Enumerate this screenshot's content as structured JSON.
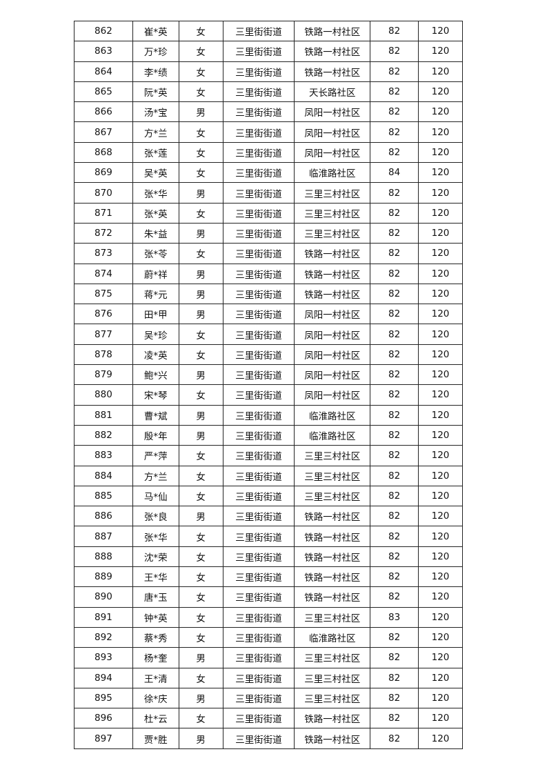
{
  "table": {
    "rows": [
      [
        "862",
        "崔*英",
        "女",
        "三里街街道",
        "铁路一村社区",
        "82",
        "120"
      ],
      [
        "863",
        "万*珍",
        "女",
        "三里街街道",
        "铁路一村社区",
        "82",
        "120"
      ],
      [
        "864",
        "李*绩",
        "女",
        "三里街街道",
        "铁路一村社区",
        "82",
        "120"
      ],
      [
        "865",
        "阮*英",
        "女",
        "三里街街道",
        "天长路社区",
        "82",
        "120"
      ],
      [
        "866",
        "汤*宝",
        "男",
        "三里街街道",
        "凤阳一村社区",
        "82",
        "120"
      ],
      [
        "867",
        "方*兰",
        "女",
        "三里街街道",
        "凤阳一村社区",
        "82",
        "120"
      ],
      [
        "868",
        "张*莲",
        "女",
        "三里街街道",
        "凤阳一村社区",
        "82",
        "120"
      ],
      [
        "869",
        "吴*英",
        "女",
        "三里街街道",
        "临淮路社区",
        "84",
        "120"
      ],
      [
        "870",
        "张*华",
        "男",
        "三里街街道",
        "三里三村社区",
        "82",
        "120"
      ],
      [
        "871",
        "张*英",
        "女",
        "三里街街道",
        "三里三村社区",
        "82",
        "120"
      ],
      [
        "872",
        "朱*益",
        "男",
        "三里街街道",
        "三里三村社区",
        "82",
        "120"
      ],
      [
        "873",
        "张*苓",
        "女",
        "三里街街道",
        "铁路一村社区",
        "82",
        "120"
      ],
      [
        "874",
        "蔚*祥",
        "男",
        "三里街街道",
        "铁路一村社区",
        "82",
        "120"
      ],
      [
        "875",
        "蒋*元",
        "男",
        "三里街街道",
        "铁路一村社区",
        "82",
        "120"
      ],
      [
        "876",
        "田*甲",
        "男",
        "三里街街道",
        "凤阳一村社区",
        "82",
        "120"
      ],
      [
        "877",
        "吴*珍",
        "女",
        "三里街街道",
        "凤阳一村社区",
        "82",
        "120"
      ],
      [
        "878",
        "凌*英",
        "女",
        "三里街街道",
        "凤阳一村社区",
        "82",
        "120"
      ],
      [
        "879",
        "鲍*兴",
        "男",
        "三里街街道",
        "凤阳一村社区",
        "82",
        "120"
      ],
      [
        "880",
        "宋*琴",
        "女",
        "三里街街道",
        "凤阳一村社区",
        "82",
        "120"
      ],
      [
        "881",
        "曹*斌",
        "男",
        "三里街街道",
        "临淮路社区",
        "82",
        "120"
      ],
      [
        "882",
        "殷*年",
        "男",
        "三里街街道",
        "临淮路社区",
        "82",
        "120"
      ],
      [
        "883",
        "严*萍",
        "女",
        "三里街街道",
        "三里三村社区",
        "82",
        "120"
      ],
      [
        "884",
        "方*兰",
        "女",
        "三里街街道",
        "三里三村社区",
        "82",
        "120"
      ],
      [
        "885",
        "马*仙",
        "女",
        "三里街街道",
        "三里三村社区",
        "82",
        "120"
      ],
      [
        "886",
        "张*良",
        "男",
        "三里街街道",
        "铁路一村社区",
        "82",
        "120"
      ],
      [
        "887",
        "张*华",
        "女",
        "三里街街道",
        "铁路一村社区",
        "82",
        "120"
      ],
      [
        "888",
        "沈*荣",
        "女",
        "三里街街道",
        "铁路一村社区",
        "82",
        "120"
      ],
      [
        "889",
        "王*华",
        "女",
        "三里街街道",
        "铁路一村社区",
        "82",
        "120"
      ],
      [
        "890",
        "唐*玉",
        "女",
        "三里街街道",
        "铁路一村社区",
        "82",
        "120"
      ],
      [
        "891",
        "钟*英",
        "女",
        "三里街街道",
        "三里三村社区",
        "83",
        "120"
      ],
      [
        "892",
        "蔡*秀",
        "女",
        "三里街街道",
        "临淮路社区",
        "82",
        "120"
      ],
      [
        "893",
        "杨*奎",
        "男",
        "三里街街道",
        "三里三村社区",
        "82",
        "120"
      ],
      [
        "894",
        "王*清",
        "女",
        "三里街街道",
        "三里三村社区",
        "82",
        "120"
      ],
      [
        "895",
        "徐*庆",
        "男",
        "三里街街道",
        "三里三村社区",
        "82",
        "120"
      ],
      [
        "896",
        "杜*云",
        "女",
        "三里街街道",
        "铁路一村社区",
        "82",
        "120"
      ],
      [
        "897",
        "贾*胜",
        "男",
        "三里街街道",
        "铁路一村社区",
        "82",
        "120"
      ]
    ]
  }
}
